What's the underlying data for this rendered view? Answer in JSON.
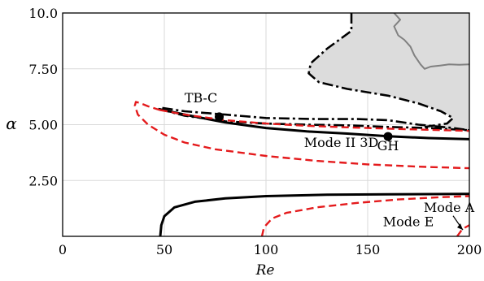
{
  "chart_data": {
    "type": "line",
    "xlabel": "Re",
    "ylabel": "α",
    "xlim": [
      0,
      200
    ],
    "ylim": [
      0,
      10
    ],
    "xticks": [
      "0",
      "50",
      "100",
      "150",
      "200"
    ],
    "yticks": [
      "2.50",
      "5.00",
      "7.50",
      "10.0"
    ],
    "grid": true,
    "colors": {
      "black": "#000000",
      "red": "#e41a1c",
      "gray": "#808080",
      "fill": "#dcdcdc",
      "grid": "#d9d9d9"
    },
    "series": [
      {
        "style": "black-solid",
        "points": [
          [
            47,
            5.7
          ],
          [
            60,
            5.45
          ],
          [
            80,
            5.1
          ],
          [
            100,
            4.85
          ],
          [
            120,
            4.7
          ],
          [
            140,
            4.6
          ],
          [
            160,
            4.48
          ],
          [
            180,
            4.4
          ],
          [
            200,
            4.35
          ]
        ]
      },
      {
        "style": "black-solid",
        "points": [
          [
            48,
            0
          ],
          [
            48.5,
            0.5
          ],
          [
            50,
            0.9
          ],
          [
            55,
            1.3
          ],
          [
            65,
            1.55
          ],
          [
            80,
            1.7
          ],
          [
            100,
            1.8
          ],
          [
            130,
            1.86
          ],
          [
            160,
            1.88
          ],
          [
            200,
            1.9
          ]
        ]
      },
      {
        "style": "black-dashdot",
        "points": [
          [
            49,
            5.75
          ],
          [
            60,
            5.6
          ],
          [
            80,
            5.45
          ],
          [
            100,
            5.3
          ],
          [
            125,
            5.25
          ],
          [
            145,
            5.25
          ],
          [
            160,
            5.2
          ],
          [
            175,
            5.0
          ],
          [
            192,
            4.85
          ],
          [
            200,
            4.75
          ]
        ]
      },
      {
        "style": "black-dashdot",
        "points": [
          [
            47.5,
            5.7
          ],
          [
            60,
            5.4
          ],
          [
            80,
            5.15
          ],
          [
            100,
            5.05
          ],
          [
            120,
            5.0
          ],
          [
            140,
            4.97
          ],
          [
            160,
            4.9
          ],
          [
            180,
            4.85
          ],
          [
            200,
            4.75
          ]
        ]
      },
      {
        "style": "black-dashdot",
        "points": [
          [
            142,
            10
          ],
          [
            142,
            9.2
          ],
          [
            130,
            8.4
          ],
          [
            122,
            7.75
          ],
          [
            121,
            7.3
          ],
          [
            126,
            6.9
          ],
          [
            140,
            6.6
          ],
          [
            160,
            6.3
          ],
          [
            175,
            5.95
          ],
          [
            186,
            5.6
          ],
          [
            192,
            5.3
          ],
          [
            189,
            5.05
          ],
          [
            178,
            4.9
          ]
        ]
      },
      {
        "style": "red-dashed",
        "points": [
          [
            48,
            5.65
          ],
          [
            60,
            5.45
          ],
          [
            80,
            5.2
          ],
          [
            100,
            5.05
          ],
          [
            120,
            4.95
          ],
          [
            140,
            4.88
          ],
          [
            160,
            4.82
          ],
          [
            180,
            4.77
          ],
          [
            200,
            4.72
          ]
        ]
      },
      {
        "style": "red-dashed",
        "points": [
          [
            48,
            5.65
          ],
          [
            42,
            5.82
          ],
          [
            38,
            5.97
          ],
          [
            36,
            6.02
          ],
          [
            35.5,
            5.85
          ],
          [
            37,
            5.45
          ],
          [
            42,
            5.0
          ],
          [
            50,
            4.55
          ],
          [
            60,
            4.2
          ],
          [
            75,
            3.9
          ],
          [
            100,
            3.6
          ],
          [
            125,
            3.38
          ],
          [
            150,
            3.22
          ],
          [
            175,
            3.12
          ],
          [
            200,
            3.05
          ]
        ]
      },
      {
        "style": "red-dashed",
        "points": [
          [
            98,
            0
          ],
          [
            99,
            0.4
          ],
          [
            103,
            0.8
          ],
          [
            110,
            1.05
          ],
          [
            125,
            1.3
          ],
          [
            145,
            1.5
          ],
          [
            165,
            1.65
          ],
          [
            185,
            1.75
          ],
          [
            200,
            1.8
          ]
        ]
      },
      {
        "style": "red-dashed",
        "points": [
          [
            194,
            0
          ],
          [
            196,
            0.25
          ],
          [
            198,
            0.4
          ],
          [
            200,
            0.5
          ]
        ]
      },
      {
        "style": "gray-solid",
        "points": [
          [
            163,
            10
          ],
          [
            166,
            9.7
          ],
          [
            163,
            9.4
          ],
          [
            165,
            9.0
          ],
          [
            168,
            8.8
          ],
          [
            171,
            8.5
          ],
          [
            173,
            8.1
          ],
          [
            176,
            7.7
          ],
          [
            178,
            7.5
          ],
          [
            181,
            7.6
          ],
          [
            186,
            7.65
          ],
          [
            190,
            7.7
          ],
          [
            195,
            7.68
          ],
          [
            200,
            7.7
          ]
        ]
      }
    ],
    "shaded_region": {
      "points": [
        [
          142,
          10
        ],
        [
          142,
          9.2
        ],
        [
          130,
          8.4
        ],
        [
          122,
          7.75
        ],
        [
          121,
          7.3
        ],
        [
          126,
          6.9
        ],
        [
          140,
          6.6
        ],
        [
          160,
          6.3
        ],
        [
          175,
          5.95
        ],
        [
          186,
          5.6
        ],
        [
          192,
          5.3
        ],
        [
          189,
          5.05
        ],
        [
          178,
          4.9
        ],
        [
          200,
          4.75
        ],
        [
          200,
          10
        ]
      ]
    },
    "markers": [
      {
        "x": 77,
        "y": 5.35
      },
      {
        "x": 160,
        "y": 4.47
      }
    ],
    "annotations": [
      {
        "text": "TB-C",
        "x": 68,
        "y": 6.0
      },
      {
        "text": "GH",
        "x": 160,
        "y": 3.85
      },
      {
        "text": "Mode II 3D",
        "x": 137,
        "y": 4.0
      },
      {
        "text": "Mode A",
        "x": 190,
        "y": 1.1
      },
      {
        "text": "Mode E",
        "x": 170,
        "y": 0.45
      }
    ]
  }
}
